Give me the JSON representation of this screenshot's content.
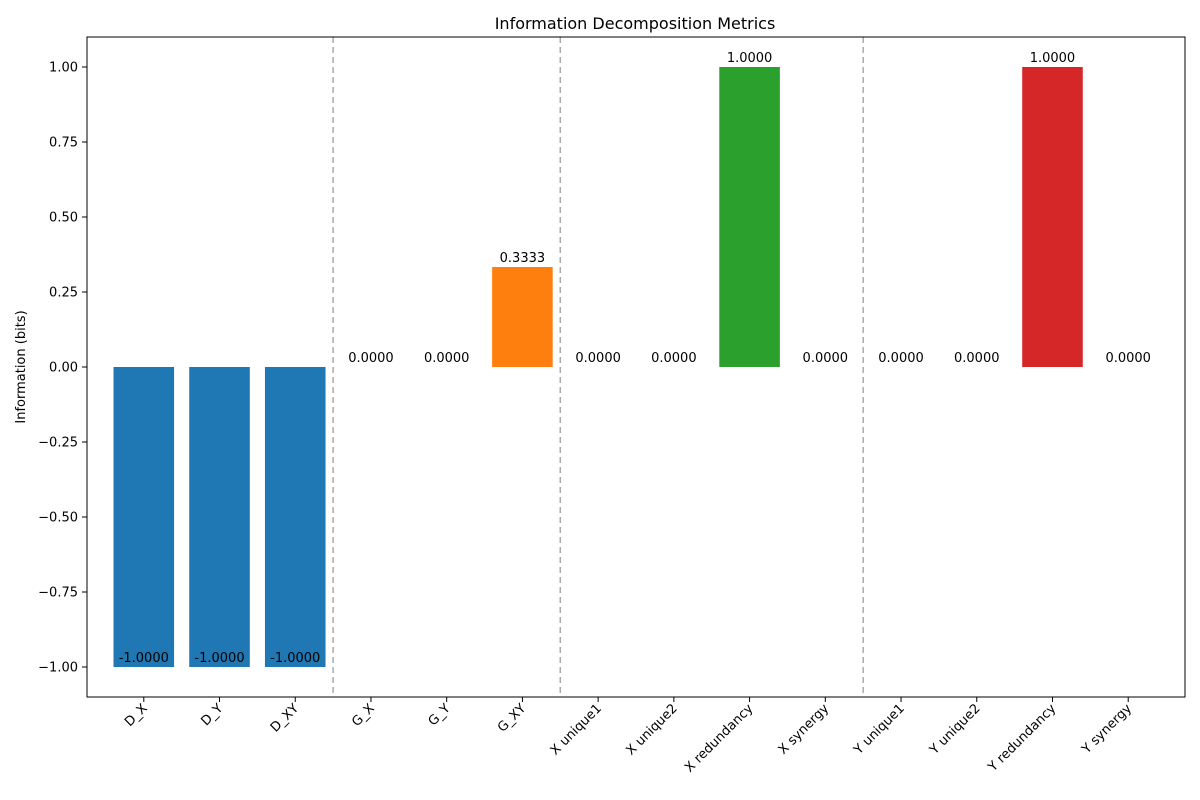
{
  "chart_data": {
    "type": "bar",
    "title": "Information Decomposition Metrics",
    "xlabel": "",
    "ylabel": "Information (bits)",
    "ylim": [
      -1.1,
      1.1
    ],
    "yticks": [
      -1.0,
      -0.75,
      -0.5,
      -0.25,
      0.0,
      0.25,
      0.5,
      0.75,
      1.0
    ],
    "ytick_labels": [
      "−1.00",
      "−0.75",
      "−0.50",
      "−0.25",
      "0.00",
      "0.25",
      "0.50",
      "0.75",
      "1.00"
    ],
    "categories": [
      "D_X",
      "D_Y",
      "D_XY",
      "G_X",
      "G_Y",
      "G_XY",
      "X unique1",
      "X unique2",
      "X redundancy",
      "X synergy",
      "Y unique1",
      "Y unique2",
      "Y redundancy",
      "Y synergy"
    ],
    "values": [
      -1.0,
      -1.0,
      -1.0,
      0.0,
      0.0,
      0.3333,
      0.0,
      0.0,
      1.0,
      0.0,
      0.0,
      0.0,
      1.0,
      0.0
    ],
    "value_labels": [
      "-1.0000",
      "-1.0000",
      "-1.0000",
      "0.0000",
      "0.0000",
      "0.3333",
      "0.0000",
      "0.0000",
      "1.0000",
      "0.0000",
      "0.0000",
      "0.0000",
      "1.0000",
      "0.0000"
    ],
    "bar_colors": [
      "#1f77b4",
      "#1f77b4",
      "#1f77b4",
      "#ff7f0e",
      "#ff7f0e",
      "#ff7f0e",
      "#2ca02c",
      "#2ca02c",
      "#2ca02c",
      "#2ca02c",
      "#d62728",
      "#d62728",
      "#d62728",
      "#d62728"
    ],
    "group_separators_after_index": [
      2,
      5,
      9
    ],
    "separator_color": "#aaaaaa",
    "grid": false,
    "legend": "none"
  }
}
